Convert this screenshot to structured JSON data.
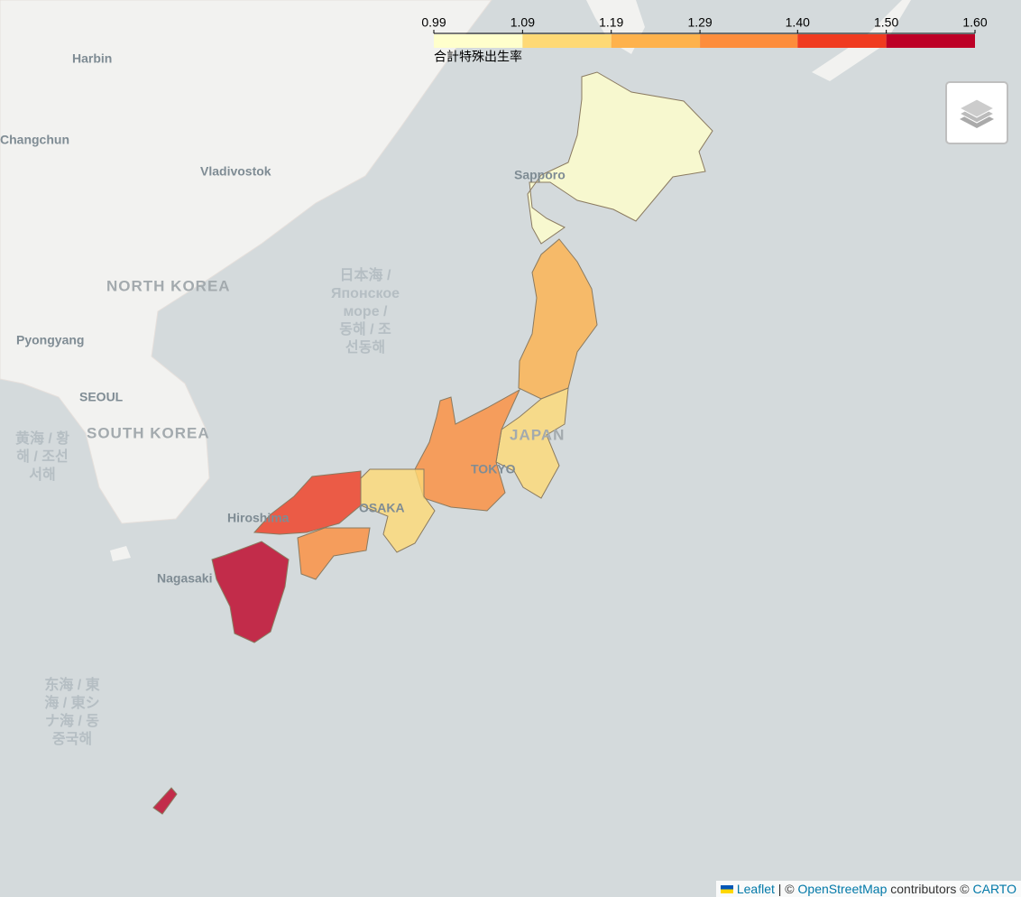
{
  "map": {
    "colorbar": {
      "caption": "合計特殊出生率",
      "lim": [
        0.99,
        1.6
      ],
      "ticks": [
        0.99,
        1.09,
        1.19,
        1.29,
        {
          "value": 1.4,
          "label": "1.40"
        },
        {
          "value": 1.5,
          "label": "1.50"
        },
        {
          "value": 1.6,
          "label": "1.60"
        }
      ],
      "colors": [
        "#ffffcc",
        "#fed976",
        "#feb24c",
        "#fd8d3c",
        "#f03b20",
        "#bd0026"
      ]
    },
    "regions": {
      "values": [
        1.0,
        1.26,
        1.15,
        1.3,
        1.17,
        1.45,
        1.36,
        1.52,
        1.6
      ]
    },
    "place_labels": [
      "Harbin",
      "Changchun",
      "Vladivostok",
      "Sapporo",
      "NORTH KOREA",
      "Pyongyang",
      "SEOUL",
      "SOUTH KOREA",
      "Hiroshima",
      "OSAKA",
      "Nagasaki",
      "JAPAN",
      "TOKYO"
    ],
    "sea_labels": [
      [
        "日本海 /",
        "Японское",
        "море /",
        "동해 / 조",
        "선동해"
      ],
      [
        "黄海 / 황",
        "해 / 조선",
        "서해"
      ],
      [
        "东海 / 東",
        "海 / 東シ",
        "ナ海 / 동",
        "중국해"
      ]
    ],
    "attribution": [
      "Leaflet",
      "| ©",
      "OpenStreetMap",
      "contributors ©",
      "CARTO"
    ]
  }
}
